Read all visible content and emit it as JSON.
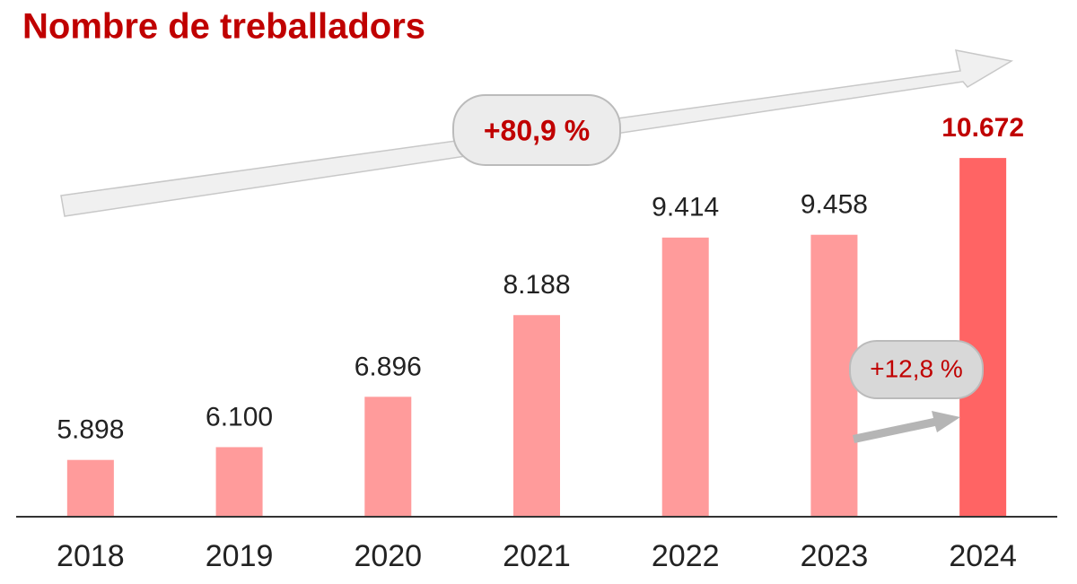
{
  "chart_data": {
    "type": "bar",
    "title": "Nombre de treballadors",
    "categories": [
      "2018",
      "2019",
      "2020",
      "2021",
      "2022",
      "2023",
      "2024"
    ],
    "values": [
      5898,
      6100,
      6896,
      8188,
      9414,
      9458,
      10672
    ],
    "value_labels": [
      "5.898",
      "6.100",
      "6.896",
      "8.188",
      "9.414",
      "9.458",
      "10.672"
    ],
    "colors": [
      "#ff9b9b",
      "#ff9b9b",
      "#ff9b9b",
      "#ff9b9b",
      "#ff9b9b",
      "#ff9b9b",
      "#ff6464"
    ],
    "ylim": [
      5000,
      11000
    ],
    "annotations": [
      "+80,9 %",
      "+12,8 %"
    ]
  }
}
